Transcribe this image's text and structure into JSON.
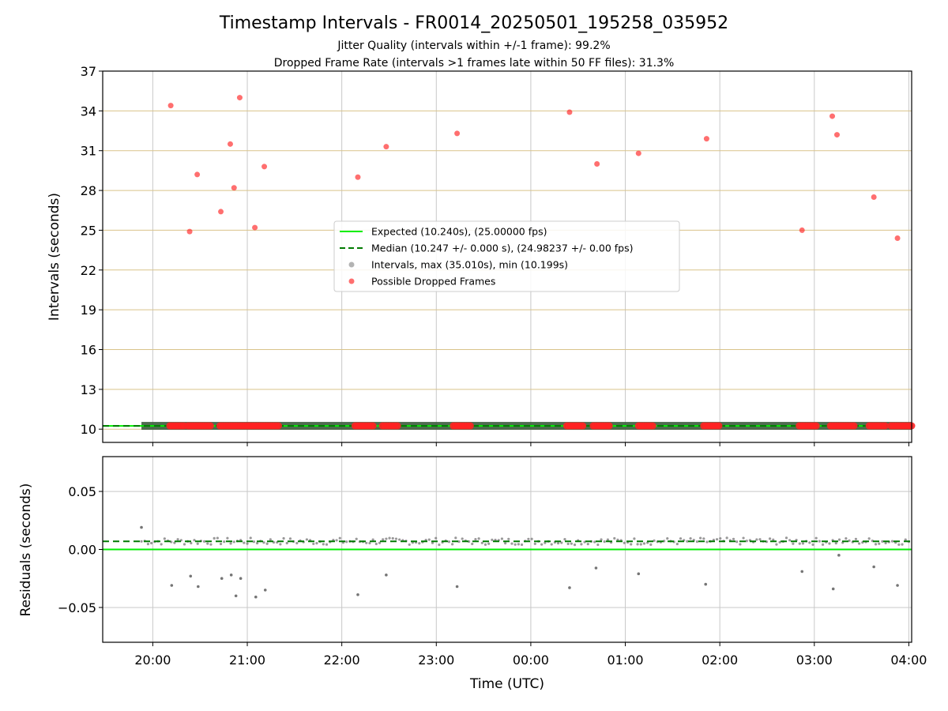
{
  "chart_data": [
    {
      "type": "scatter",
      "title": "Timestamp Intervals - FR0014_20250501_195258_035952",
      "subtitle": [
        "Jitter Quality (intervals within +/-1 frame): 99.2%",
        "Dropped Frame Rate (intervals >1 frames late within 50 FF files): 31.3%"
      ],
      "xlabel": "",
      "ylabel": "Intervals (seconds)",
      "x_unit": "hours since 20:00 UTC",
      "xlim": [
        -0.53,
        8.03
      ],
      "ylim": [
        9.0,
        37.0
      ],
      "yticks": [
        10,
        13,
        16,
        19,
        22,
        25,
        28,
        31,
        34,
        37
      ],
      "grid": "on",
      "legend_position": "center",
      "legend": [
        "Expected (10.240s), (25.00000 fps)",
        "Median (10.247 +/- 0.000 s), (24.98237 +/- 0.00 fps)",
        "Intervals, max (35.010s), min (10.199s)",
        "Possible Dropped Frames"
      ],
      "expected_line": 10.24,
      "median_line": 10.247,
      "interval_band": {
        "x_start": -0.12,
        "x_end": 8.03,
        "value": 10.247
      },
      "dropped_frames_high": [
        {
          "x": 0.19,
          "y": 34.4
        },
        {
          "x": 0.39,
          "y": 24.9
        },
        {
          "x": 0.47,
          "y": 29.2
        },
        {
          "x": 0.72,
          "y": 26.4
        },
        {
          "x": 0.82,
          "y": 31.5
        },
        {
          "x": 0.86,
          "y": 28.2
        },
        {
          "x": 0.92,
          "y": 35.0
        },
        {
          "x": 1.08,
          "y": 25.2
        },
        {
          "x": 1.18,
          "y": 29.8
        },
        {
          "x": 2.17,
          "y": 29.0
        },
        {
          "x": 2.47,
          "y": 31.3
        },
        {
          "x": 3.22,
          "y": 32.3
        },
        {
          "x": 4.41,
          "y": 33.9
        },
        {
          "x": 4.7,
          "y": 30.0
        },
        {
          "x": 5.14,
          "y": 30.8
        },
        {
          "x": 5.86,
          "y": 31.9
        },
        {
          "x": 6.87,
          "y": 25.0
        },
        {
          "x": 7.19,
          "y": 33.6
        },
        {
          "x": 7.24,
          "y": 32.2
        },
        {
          "x": 7.63,
          "y": 27.5
        },
        {
          "x": 7.88,
          "y": 24.4
        }
      ],
      "dropped_frames_low_ranges": [
        [
          0.18,
          0.33
        ],
        [
          0.37,
          0.61
        ],
        [
          0.71,
          1.01
        ],
        [
          1.03,
          1.33
        ],
        [
          2.14,
          2.33
        ],
        [
          2.43,
          2.59
        ],
        [
          3.18,
          3.36
        ],
        [
          4.38,
          4.55
        ],
        [
          4.66,
          4.83
        ],
        [
          5.14,
          5.29
        ],
        [
          5.83,
          5.99
        ],
        [
          6.84,
          7.02
        ],
        [
          7.17,
          7.42
        ],
        [
          7.58,
          7.75
        ],
        [
          7.81,
          8.03
        ]
      ]
    },
    {
      "type": "scatter",
      "xlabel": "Time (UTC)",
      "ylabel": "Residuals (seconds)",
      "x_unit": "hours since 20:00 UTC",
      "xlim": [
        -0.53,
        8.03
      ],
      "ylim": [
        -0.08,
        0.08
      ],
      "yticks": [
        0.05,
        0.0,
        -0.05
      ],
      "ytick_labels": [
        "0.05",
        "0.00",
        "−0.05"
      ],
      "xticks": [
        0,
        1,
        2,
        3,
        4,
        5,
        6,
        7,
        8
      ],
      "xtick_labels": [
        "20:00",
        "21:00",
        "22:00",
        "23:00",
        "00:00",
        "01:00",
        "02:00",
        "03:00",
        "04:00"
      ],
      "grid": "on",
      "expected_line": 0.0,
      "median_line": 0.007,
      "residual_band": {
        "x_start": -0.12,
        "x_end": 8.03,
        "center": 0.007
      },
      "outliers": [
        {
          "x": -0.12,
          "y": 0.019
        },
        {
          "x": 0.2,
          "y": -0.031
        },
        {
          "x": 0.4,
          "y": -0.023
        },
        {
          "x": 0.48,
          "y": -0.032
        },
        {
          "x": 0.73,
          "y": -0.025
        },
        {
          "x": 0.83,
          "y": -0.022
        },
        {
          "x": 0.88,
          "y": -0.04
        },
        {
          "x": 0.93,
          "y": -0.025
        },
        {
          "x": 1.09,
          "y": -0.041
        },
        {
          "x": 1.19,
          "y": -0.035
        },
        {
          "x": 2.17,
          "y": -0.039
        },
        {
          "x": 2.47,
          "y": -0.022
        },
        {
          "x": 3.22,
          "y": -0.032
        },
        {
          "x": 4.41,
          "y": -0.033
        },
        {
          "x": 4.69,
          "y": -0.016
        },
        {
          "x": 5.14,
          "y": -0.021
        },
        {
          "x": 5.85,
          "y": -0.03
        },
        {
          "x": 6.87,
          "y": -0.019
        },
        {
          "x": 7.2,
          "y": -0.034
        },
        {
          "x": 7.26,
          "y": -0.005
        },
        {
          "x": 7.63,
          "y": -0.015
        },
        {
          "x": 7.88,
          "y": -0.031
        }
      ]
    }
  ],
  "colors": {
    "expected": "#00ee00",
    "median": "#007a00",
    "interval_points": "#808080",
    "dropped": "#ff2222",
    "hgrid_top": "#d9c38a",
    "grid": "#c8c8c8"
  }
}
